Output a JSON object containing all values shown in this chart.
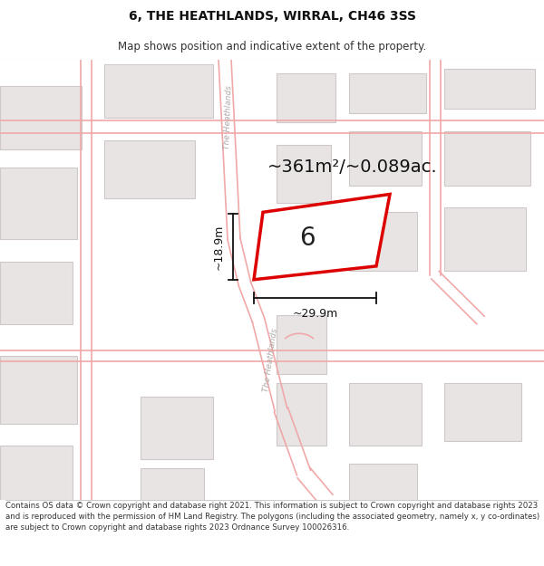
{
  "title": "6, THE HEATHLANDS, WIRRAL, CH46 3SS",
  "subtitle": "Map shows position and indicative extent of the property.",
  "area_text": "~361m²/~0.089ac.",
  "plot_number": "6",
  "dim_width": "~29.9m",
  "dim_height": "~18.9m",
  "footer": "Contains OS data © Crown copyright and database right 2021. This information is subject to Crown copyright and database rights 2023 and is reproduced with the permission of HM Land Registry. The polygons (including the associated geometry, namely x, y co-ordinates) are subject to Crown copyright and database rights 2023 Ordnance Survey 100026316.",
  "map_bg": "#ffffff",
  "plot_fill": "#ffffff",
  "plot_edge": "#dd0000",
  "road_outline_color": "#f0a8a8",
  "building_fill": "#e8e4e4",
  "building_edge": "#d0c8c8",
  "road_label_color": "#b0a8a8",
  "dim_color": "#111111",
  "title_color": "#111111",
  "subtitle_color": "#333333",
  "footer_color": "#333333"
}
